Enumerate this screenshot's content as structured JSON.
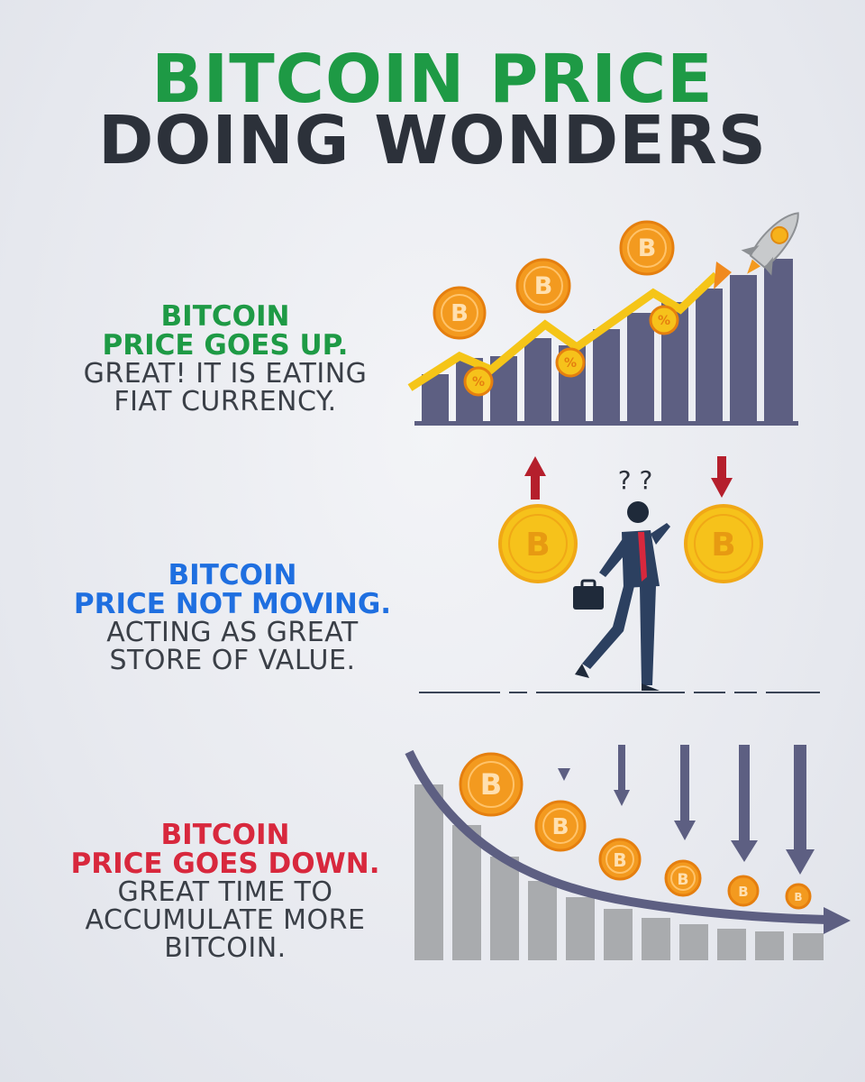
{
  "title": {
    "line1": "BITCOIN PRICE",
    "line2": "DOING WONDERS"
  },
  "sections": [
    {
      "head1": "BITCOIN",
      "head2": "PRICE GOES UP.",
      "body": [
        "GREAT! IT IS EATING",
        "FIAT CURRENCY."
      ],
      "accent": "#1e9a45"
    },
    {
      "head1": "BITCOIN",
      "head2": "PRICE NOT MOVING.",
      "body": [
        "ACTING AS GREAT",
        "STORE OF VALUE."
      ],
      "accent": "#1f6fe0"
    },
    {
      "head1": "BITCOIN",
      "head2": "PRICE GOES DOWN.",
      "body": [
        "GREAT TIME TO",
        "ACCUMULATE MORE",
        "BITCOIN."
      ],
      "accent": "#d8283d"
    }
  ],
  "illustrations": {
    "up": {
      "coin_glyph": "B",
      "badge_glyph": "%",
      "icons": [
        "bar-chart-up-icon",
        "rocket-icon",
        "bitcoin-coin-icon",
        "percent-badge-icon",
        "trend-arrow-up-icon"
      ]
    },
    "flat": {
      "question_marks": "? ?",
      "icons": [
        "businessman-icon",
        "briefcase-icon",
        "arrow-up-icon",
        "arrow-down-icon",
        "bitcoin-coin-icon"
      ]
    },
    "down": {
      "coin_glyph": "B",
      "icons": [
        "bar-chart-down-icon",
        "trend-arrow-down-icon",
        "bitcoin-coin-icon",
        "falling-arrow-icon"
      ]
    }
  },
  "colors": {
    "background": "#e9ebf0",
    "bars_up": "#5d5f82",
    "bars_down": "#a9abae",
    "trend_up": "#f5c518",
    "trend_down": "#5d5f82",
    "coin_orange": "#f39a1f",
    "coin_gold": "#f6c21b",
    "arrow_red": "#b51f2c"
  }
}
